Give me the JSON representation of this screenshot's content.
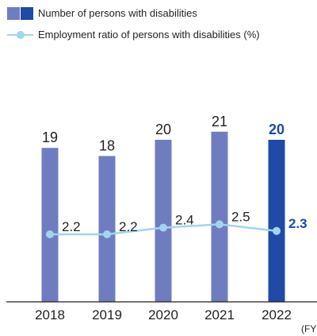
{
  "legend": {
    "bars_label": "Number of persons with disabilities",
    "line_label": "Employment ratio of persons with disabilities (%)"
  },
  "colors": {
    "bar": "#6f7dc0",
    "bar_highlight": "#1f4aa6",
    "line": "#9fd6ee",
    "text": "#231f20",
    "highlight_text": "#1f4aa6",
    "axis": "#231f20"
  },
  "fy_label": "(FY",
  "chart_data": {
    "type": "bar",
    "categories": [
      "2018",
      "2019",
      "2020",
      "2021",
      "2022"
    ],
    "series": [
      {
        "name": "Number of persons with disabilities",
        "type": "bar",
        "values": [
          19,
          18,
          20,
          21,
          20
        ],
        "highlight_index": 4
      },
      {
        "name": "Employment ratio of persons with disabilities (%)",
        "type": "line",
        "values": [
          2.2,
          2.2,
          2.4,
          2.5,
          2.3
        ],
        "highlight_index": 4
      }
    ],
    "bar_labels": [
      "19",
      "18",
      "20",
      "21",
      "20"
    ],
    "line_labels": [
      "2.2",
      "2.2",
      "2.4",
      "2.5",
      "2.3"
    ],
    "xlabel": "(FY",
    "ylabel": "",
    "grid": false
  }
}
